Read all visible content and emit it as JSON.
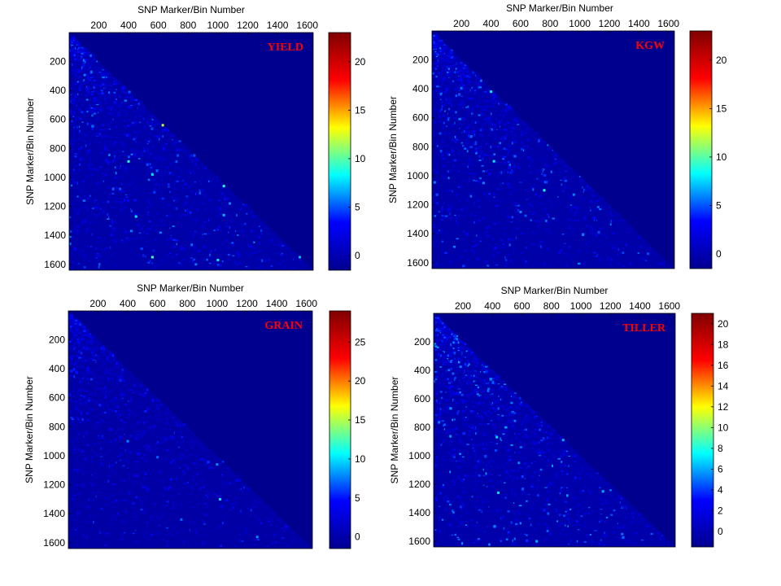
{
  "colors": {
    "background_blue": "#00008f",
    "title_red": "#ff0000",
    "colormap": "jet",
    "colormap_stops": [
      "#00008f",
      "#0000ff",
      "#00ffff",
      "#ffff00",
      "#ff0000",
      "#800000"
    ]
  },
  "chart_data": [
    {
      "type": "heatmap",
      "title": "YIELD",
      "xlabel": "SNP Marker/Bin Number",
      "ylabel": "SNP Marker/Bin Number",
      "xlim": [
        1,
        1640
      ],
      "ylim": [
        1,
        1640
      ],
      "x_ticks": [
        200,
        400,
        600,
        800,
        1000,
        1200,
        1400,
        1600
      ],
      "y_ticks": [
        200,
        400,
        600,
        800,
        1000,
        1200,
        1400,
        1600
      ],
      "colorbar_range": [
        -1.5,
        23
      ],
      "colorbar_ticks": [
        0,
        5,
        10,
        15,
        20
      ],
      "pattern": "lower-triangular",
      "hotspots": [
        {
          "x": 1040,
          "y": 1060,
          "value": 9
        },
        {
          "x": 1040,
          "y": 1260,
          "value": 7
        },
        {
          "x": 1080,
          "y": 1180,
          "value": 6
        },
        {
          "x": 450,
          "y": 1270,
          "value": 8
        },
        {
          "x": 630,
          "y": 640,
          "value": 12
        },
        {
          "x": 560,
          "y": 980,
          "value": 8
        },
        {
          "x": 400,
          "y": 890,
          "value": 9
        },
        {
          "x": 560,
          "y": 1550,
          "value": 10
        },
        {
          "x": 1000,
          "y": 1570,
          "value": 8
        },
        {
          "x": 1550,
          "y": 1550,
          "value": 7
        }
      ]
    },
    {
      "type": "heatmap",
      "title": "KGW",
      "xlabel": "SNP Marker/Bin Number",
      "ylabel": "SNP Marker/Bin Number",
      "xlim": [
        1,
        1640
      ],
      "ylim": [
        1,
        1640
      ],
      "x_ticks": [
        200,
        400,
        600,
        800,
        1000,
        1200,
        1400,
        1600
      ],
      "y_ticks": [
        200,
        400,
        600,
        800,
        1000,
        1200,
        1400,
        1600
      ],
      "colorbar_range": [
        -1.5,
        23
      ],
      "colorbar_ticks": [
        0,
        5,
        10,
        15,
        20
      ],
      "pattern": "lower-triangular",
      "hotspots": [
        {
          "x": 400,
          "y": 420,
          "value": 8
        },
        {
          "x": 760,
          "y": 1100,
          "value": 9
        },
        {
          "x": 420,
          "y": 900,
          "value": 8
        },
        {
          "x": 960,
          "y": 1130,
          "value": 6
        },
        {
          "x": 600,
          "y": 1250,
          "value": 6
        },
        {
          "x": 350,
          "y": 1050,
          "value": 6
        }
      ]
    },
    {
      "type": "heatmap",
      "title": "GRAIN",
      "xlabel": "SNP Marker/Bin Number",
      "ylabel": "SNP Marker/Bin Number",
      "xlim": [
        1,
        1640
      ],
      "ylim": [
        1,
        1640
      ],
      "x_ticks": [
        200,
        400,
        600,
        800,
        1000,
        1200,
        1400,
        1600
      ],
      "y_ticks": [
        200,
        400,
        600,
        800,
        1000,
        1200,
        1400,
        1600
      ],
      "colorbar_range": [
        -1.5,
        29
      ],
      "colorbar_ticks": [
        0,
        5,
        10,
        15,
        20,
        25
      ],
      "pattern": "lower-triangular",
      "hotspots": [
        {
          "x": 1020,
          "y": 1300,
          "value": 10
        },
        {
          "x": 1000,
          "y": 1060,
          "value": 8
        },
        {
          "x": 400,
          "y": 900,
          "value": 8
        },
        {
          "x": 600,
          "y": 1010,
          "value": 7
        },
        {
          "x": 1270,
          "y": 1560,
          "value": 8
        },
        {
          "x": 760,
          "y": 1440,
          "value": 7
        }
      ]
    },
    {
      "type": "heatmap",
      "title": "TILLER",
      "xlabel": "SNP Marker/Bin Number",
      "ylabel": "SNP Marker/Bin Number",
      "xlim": [
        1,
        1640
      ],
      "ylim": [
        1,
        1640
      ],
      "x_ticks": [
        200,
        400,
        600,
        800,
        1000,
        1200,
        1400,
        1600
      ],
      "y_ticks": [
        200,
        400,
        600,
        800,
        1000,
        1200,
        1400,
        1600
      ],
      "colorbar_range": [
        -1.5,
        21
      ],
      "colorbar_ticks": [
        0,
        2,
        4,
        6,
        8,
        10,
        12,
        14,
        16,
        18,
        20
      ],
      "pattern": "lower-triangular",
      "hotspots": [
        {
          "x": 430,
          "y": 870,
          "value": 7
        },
        {
          "x": 880,
          "y": 890,
          "value": 6
        },
        {
          "x": 1150,
          "y": 1250,
          "value": 6
        },
        {
          "x": 440,
          "y": 1260,
          "value": 7
        },
        {
          "x": 700,
          "y": 1600,
          "value": 6
        },
        {
          "x": 1280,
          "y": 1550,
          "value": 5
        }
      ]
    }
  ]
}
